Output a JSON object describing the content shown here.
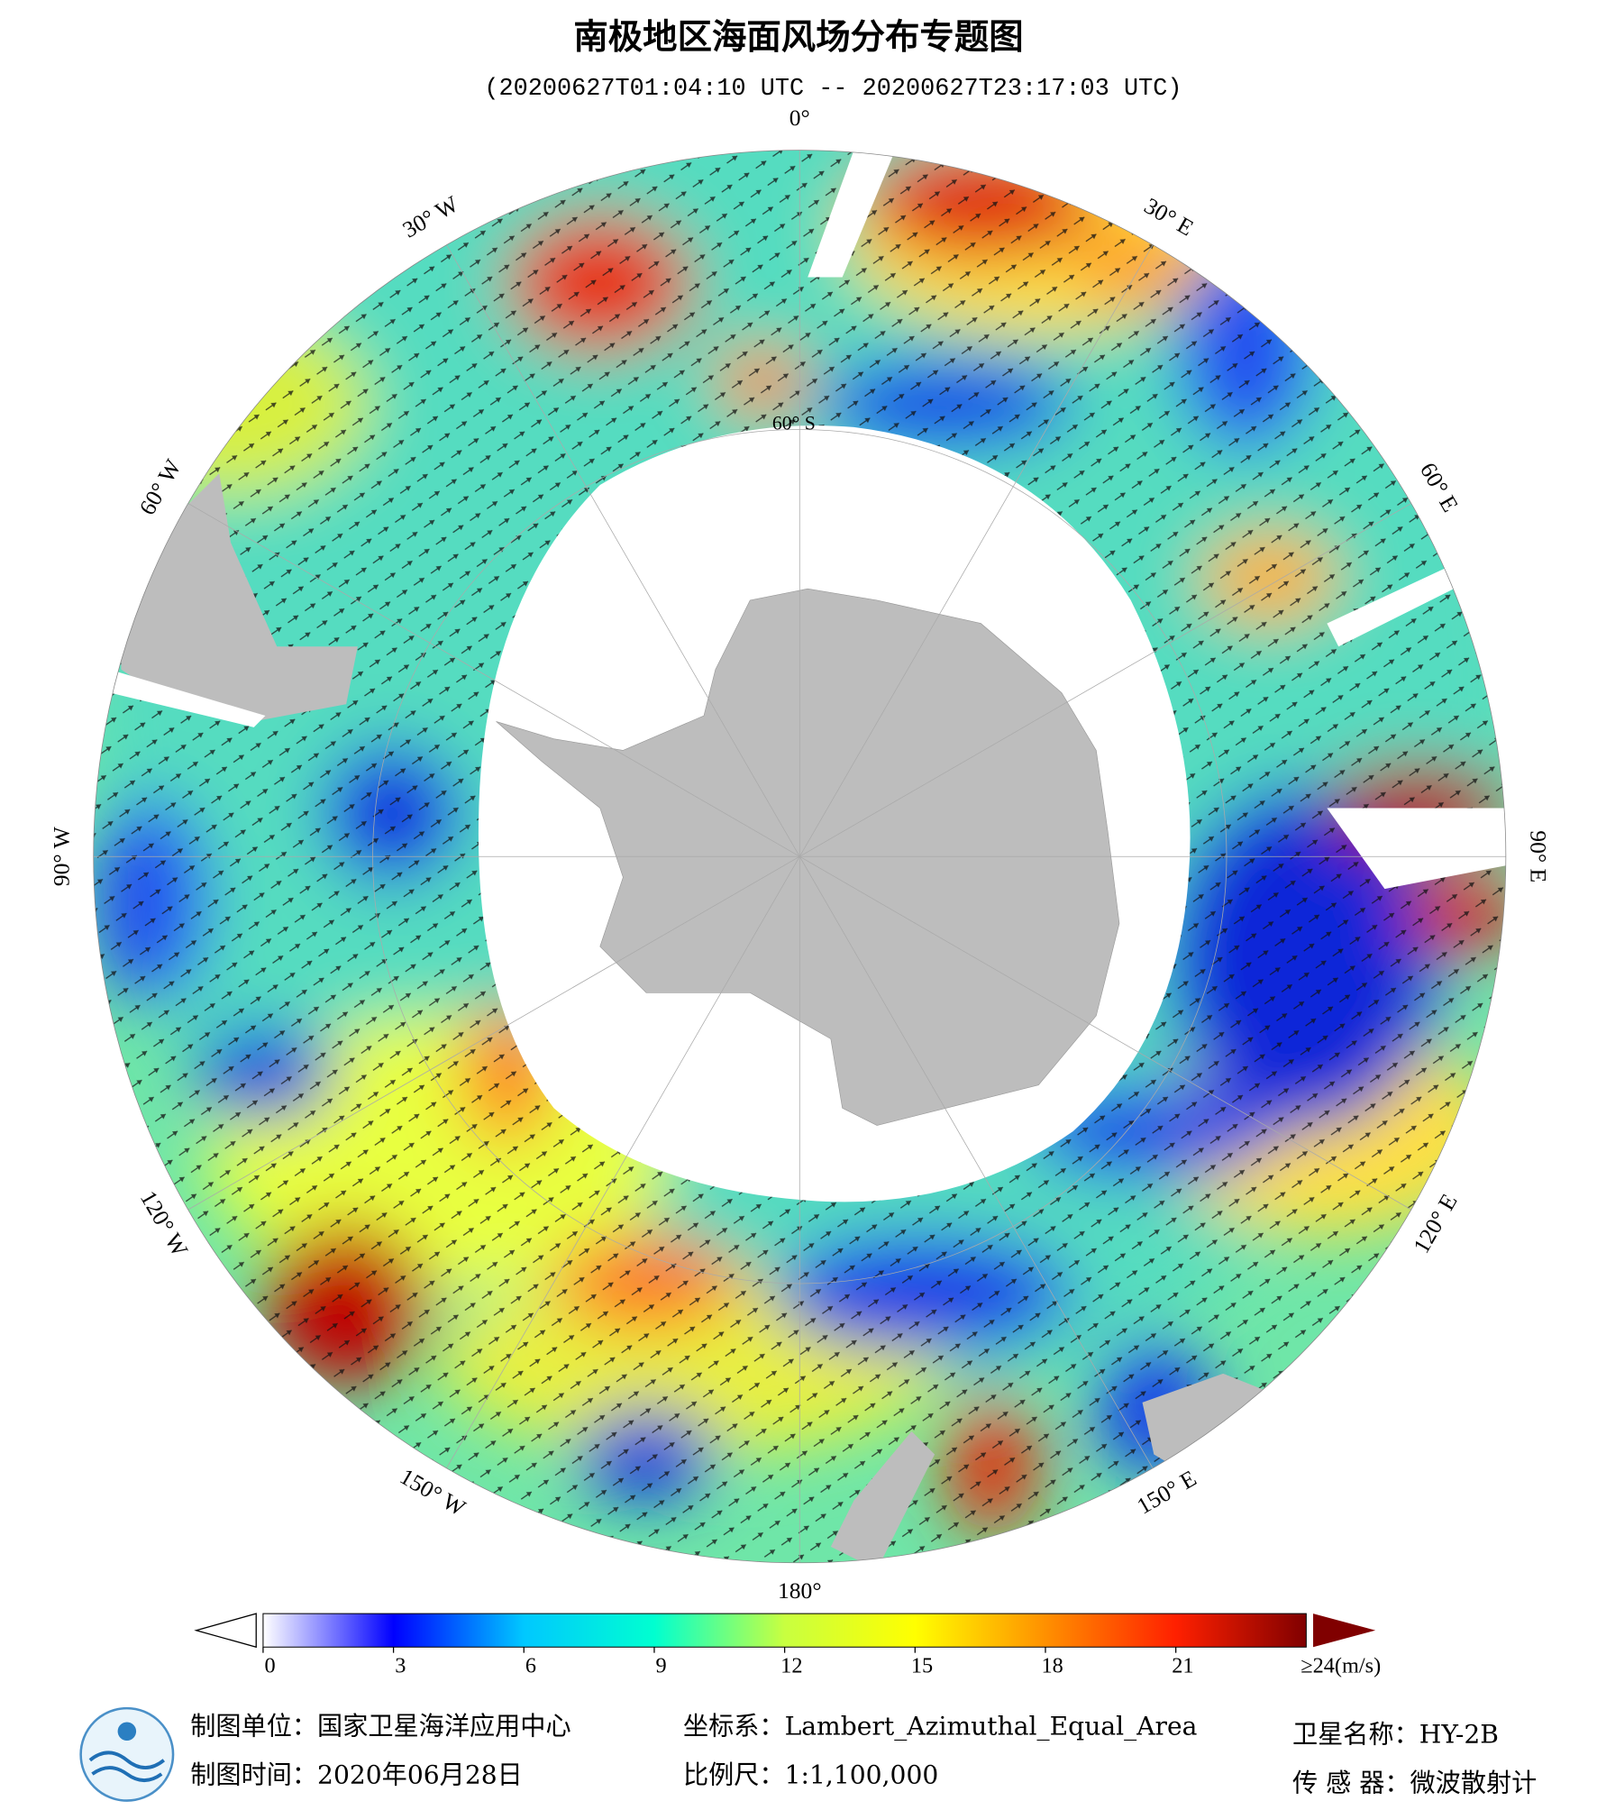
{
  "header": {
    "title": "南极地区海面风场分布专题图",
    "subtitle": "(20200627T01:04:10 UTC -- 20200627T23:17:03 UTC)"
  },
  "map": {
    "longitude_labels": [
      "0°",
      "30° E",
      "60° E",
      "90° E",
      "120° E",
      "150° E",
      "180°",
      "150° W",
      "120° W",
      "90° W",
      "60° W",
      "30° W"
    ],
    "latitude_label": "60° S"
  },
  "colorbar": {
    "range": [
      0,
      24
    ],
    "ticks": [
      0,
      3,
      6,
      9,
      12,
      15,
      18,
      21
    ],
    "max_label": "≥24(m/s)",
    "colors": [
      "#ffffff",
      "#0000ff",
      "#00c8ff",
      "#00ffd0",
      "#c8ff40",
      "#ffff00",
      "#ff9000",
      "#ff2000",
      "#800000"
    ]
  },
  "footer": {
    "producer": "制图单位：国家卫星海洋应用中心",
    "date": "制图时间：2020年06月28日",
    "projection": "坐标系：Lambert_Azimuthal_Equal_Area",
    "scale": "比例尺：1:1,100,000",
    "satellite": "卫星名称：HY-2B",
    "sensor": "传 感 器：微波散射计"
  }
}
